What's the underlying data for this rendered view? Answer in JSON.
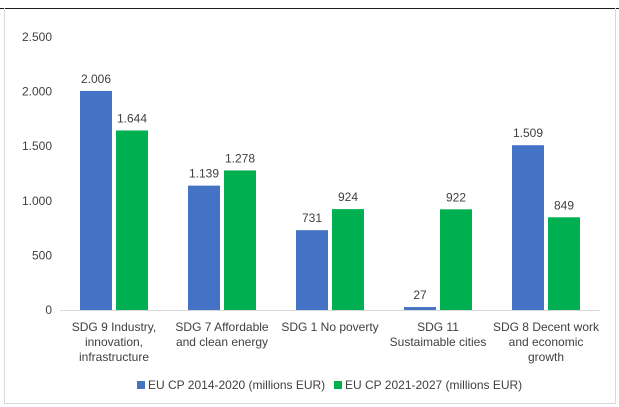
{
  "chart_data": {
    "type": "bar",
    "categories": [
      [
        "SDG 9 Industry,",
        "innovation,",
        "infrastructure"
      ],
      [
        "SDG 7 Affordable",
        "and clean energy"
      ],
      [
        "SDG 1 No poverty"
      ],
      [
        "SDG 11",
        "Sustaimable cities"
      ],
      [
        "SDG 8 Decent work",
        "and economic",
        "growth"
      ]
    ],
    "series": [
      {
        "name": "EU CP 2014-2020 (millions EUR)",
        "color": "#4472c4",
        "values": [
          2006,
          1139,
          731,
          27,
          1509
        ],
        "labels": [
          "2.006",
          "1.139",
          "731",
          "27",
          "1.509"
        ]
      },
      {
        "name": "EU CP 2021-2027 (millions EUR)",
        "color": "#00b050",
        "values": [
          1644,
          1278,
          924,
          922,
          849
        ],
        "labels": [
          "1.644",
          "1.278",
          "924",
          "922",
          "849"
        ]
      }
    ],
    "yticks": [
      0,
      500,
      1000,
      1500,
      2000,
      2500
    ],
    "ytick_labels": [
      "0",
      "500",
      "1.000",
      "1.500",
      "2.000",
      "2.500"
    ],
    "ylim": [
      0,
      2500
    ],
    "grid": false,
    "legend_position": "bottom"
  }
}
